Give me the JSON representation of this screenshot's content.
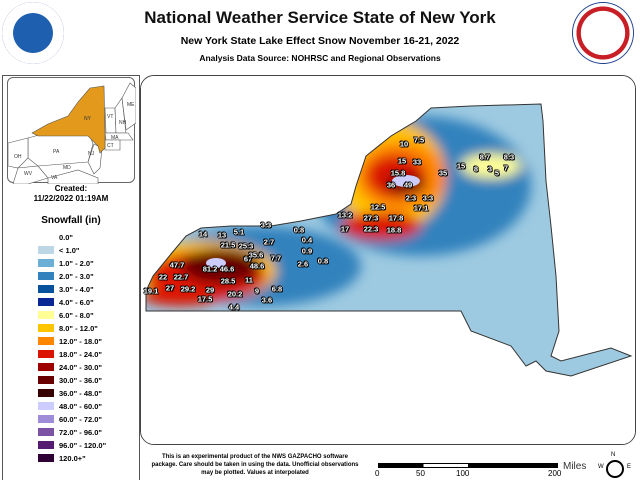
{
  "header": {
    "title": "National Weather Service State of New York",
    "subtitle": "New York State Lake Effect Snow November 16-21, 2022",
    "source": "Analysis Data Source: NOHRSC and Regional Observations"
  },
  "logos": {
    "left": "NOAA",
    "right": "National Weather Service - U.S. Department of Commerce"
  },
  "inset": {
    "states": [
      "NY",
      "VT",
      "NH",
      "ME",
      "MA",
      "CT",
      "NJ",
      "PA",
      "OH",
      "WV",
      "VA",
      "MD"
    ],
    "highlight_color": "#e39a1c"
  },
  "created": {
    "label": "Created:",
    "value": "11/22/2022 01:19AM"
  },
  "legend": {
    "title": "Snowfall (in)",
    "items": [
      {
        "label": "0.0\"",
        "color": "#ffffff"
      },
      {
        "label": "< 1.0\"",
        "color": "#bdd7e7"
      },
      {
        "label": "1.0\" - 2.0\"",
        "color": "#6baed6"
      },
      {
        "label": "2.0\" - 3.0\"",
        "color": "#3182bd"
      },
      {
        "label": "3.0\" - 4.0\"",
        "color": "#08519c"
      },
      {
        "label": "4.0\" - 6.0\"",
        "color": "#082694"
      },
      {
        "label": "6.0\" - 8.0\"",
        "color": "#ffff96"
      },
      {
        "label": "8.0\" - 12.0\"",
        "color": "#ffc400"
      },
      {
        "label": "12.0\" - 18.0\"",
        "color": "#ff8700"
      },
      {
        "label": "18.0\" - 24.0\"",
        "color": "#db1400"
      },
      {
        "label": "24.0\" - 30.0\"",
        "color": "#9e0000"
      },
      {
        "label": "30.0\" - 36.0\"",
        "color": "#690000"
      },
      {
        "label": "36.0\" - 48.0\"",
        "color": "#360000"
      },
      {
        "label": "48.0\" - 60.0\"",
        "color": "#ccccff"
      },
      {
        "label": "60.0\" - 72.0\"",
        "color": "#9f8cd8"
      },
      {
        "label": "72.0\" - 96.0\"",
        "color": "#7c52a5"
      },
      {
        "label": "96.0\" - 120.0\"",
        "color": "#561c72"
      },
      {
        "label": "120.0+\"",
        "color": "#2e0033"
      }
    ]
  },
  "observations": [
    "14",
    "13",
    "5.1",
    "3.3",
    "0.8",
    "21.5",
    "25.3",
    "2.7",
    "0.4",
    "0.9",
    "67",
    "35.6",
    "7.7",
    "47.7",
    "81.2",
    "46.6",
    "48.6",
    "2.6",
    "0.8",
    "22",
    "22.7",
    "28.5",
    "11",
    "19.1",
    "27",
    "29.2",
    "29",
    "9",
    "6.8",
    "20.2",
    "17.5",
    "3.6",
    "4.4",
    "10",
    "7.5",
    "15",
    "33",
    "15.8",
    "35",
    "36",
    "49",
    "2.3",
    "3.3",
    "17.1",
    "12.5",
    "13.2",
    "27.3",
    "17.8",
    "17",
    "22.3",
    "18.8",
    "15",
    "8.7",
    "8.3",
    "8",
    "3",
    "5",
    "7"
  ],
  "disclaimer": "This is an experimental product of the NWS GAZPACHO software package. Care should be taken in using the data. Unofficial observations may be plotted. Values at interpolated",
  "scale": {
    "unit": "Miles",
    "ticks": [
      "0",
      "50",
      "100",
      "200"
    ]
  },
  "compass": {
    "n": "N",
    "w": "W",
    "e": "E"
  }
}
